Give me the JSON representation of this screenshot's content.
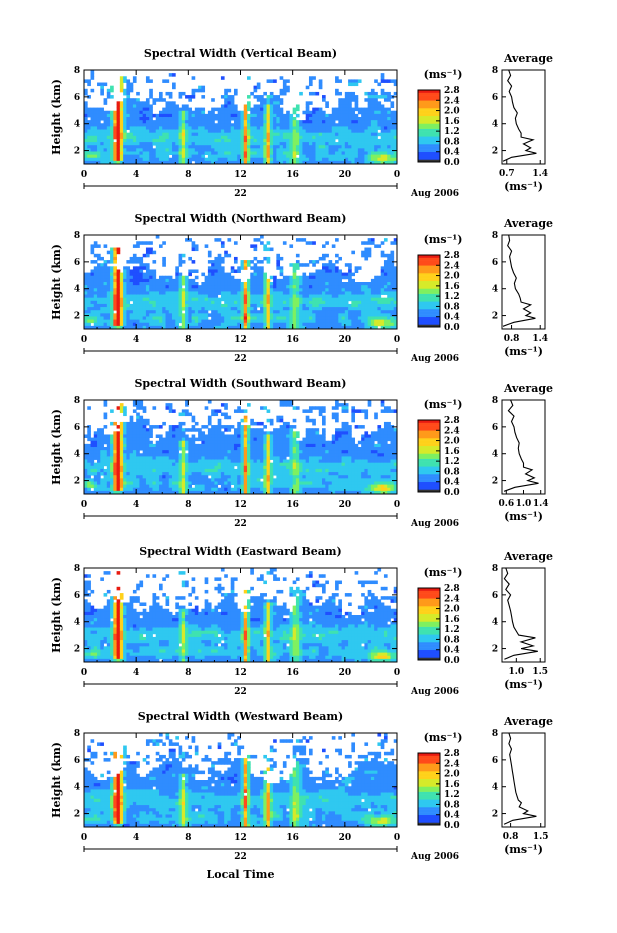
{
  "colors": {
    "colormap": [
      "#2a2ab0",
      "#1f4fff",
      "#2f8cff",
      "#2fc8f0",
      "#3fe2b0",
      "#7ff060",
      "#d6ea2a",
      "#ffd11a",
      "#ff9a1a",
      "#ff4a1a",
      "#e81a10"
    ],
    "cb_bottom": "#333333",
    "white": "#ffffff"
  },
  "figure": {
    "xlabel": "Local Time",
    "xdate_label": "22",
    "month_label": "Aug 2006",
    "xticks": [
      "0",
      "4",
      "8",
      "12",
      "16",
      "20",
      "0"
    ],
    "yticks": [
      "2",
      "4",
      "6",
      "8"
    ],
    "ylabel": "Height (km)",
    "cb_label": "(ms⁻¹)",
    "cb_ticks": [
      "0.0",
      "0.4",
      "0.8",
      "1.2",
      "1.6",
      "2.0",
      "2.4",
      "2.8"
    ],
    "avg_title": "Average",
    "avg_xlabel": "(ms⁻¹)",
    "avg_yticks": [
      "2",
      "4",
      "6",
      "8"
    ]
  },
  "chart_data": [
    {
      "type": "heatmap",
      "title": "Spectral Width (Vertical Beam)",
      "xlabel": "",
      "ylabel": "Height (km)",
      "xlim": [
        0,
        24
      ],
      "ylim": [
        1,
        8
      ],
      "colorbar": {
        "label": "(ms⁻¹)",
        "range": [
          0,
          2.8
        ]
      },
      "average": {
        "title": "Average",
        "xticks": [
          "0.7",
          "1.4"
        ],
        "xlim": [
          0.6,
          1.5
        ],
        "height": [
          1.2,
          1.5,
          1.8,
          2.0,
          2.2,
          2.5,
          2.8,
          3.0,
          3.3,
          3.6,
          4.0,
          4.4,
          4.8,
          5.2,
          5.6,
          6.0,
          6.4,
          6.8,
          7.2,
          7.6,
          8.0
        ],
        "value": [
          0.62,
          0.8,
          1.32,
          1.1,
          1.2,
          1.05,
          1.25,
          1.0,
          1.0,
          0.95,
          0.9,
          0.88,
          0.92,
          0.85,
          0.82,
          0.8,
          0.75,
          0.8,
          0.72,
          0.78,
          0.74
        ]
      }
    },
    {
      "type": "heatmap",
      "title": "Spectral Width (Northward Beam)",
      "xlabel": "",
      "ylabel": "Height (km)",
      "xlim": [
        0,
        24
      ],
      "ylim": [
        1,
        8
      ],
      "colorbar": {
        "label": "(ms⁻¹)",
        "range": [
          0,
          2.8
        ]
      },
      "average": {
        "title": "Average",
        "xticks": [
          "0.8",
          "1.4"
        ],
        "xlim": [
          0.6,
          1.5
        ],
        "height": [
          1.2,
          1.5,
          1.8,
          2.0,
          2.2,
          2.5,
          2.8,
          3.0,
          3.3,
          3.6,
          4.0,
          4.4,
          4.8,
          5.2,
          5.6,
          6.0,
          6.4,
          6.8,
          7.2,
          7.6,
          8.0
        ],
        "value": [
          0.62,
          0.85,
          1.3,
          1.1,
          1.2,
          1.05,
          1.2,
          1.0,
          0.98,
          0.95,
          0.88,
          0.86,
          0.9,
          0.84,
          0.8,
          0.78,
          0.76,
          0.8,
          0.72,
          0.76,
          0.74
        ]
      }
    },
    {
      "type": "heatmap",
      "title": "Spectral Width (Southward Beam)",
      "xlabel": "",
      "ylabel": "Height (km)",
      "xlim": [
        0,
        24
      ],
      "ylim": [
        1,
        8
      ],
      "colorbar": {
        "label": "(ms⁻¹)",
        "range": [
          0,
          2.8
        ]
      },
      "average": {
        "title": "Average",
        "xticks": [
          "0.6",
          "1.0",
          "1.4"
        ],
        "xlim": [
          0.5,
          1.5
        ],
        "height": [
          1.2,
          1.5,
          1.8,
          2.0,
          2.2,
          2.5,
          2.8,
          3.0,
          3.3,
          3.6,
          4.0,
          4.4,
          4.8,
          5.2,
          5.6,
          6.0,
          6.4,
          6.8,
          7.2,
          7.6,
          8.0
        ],
        "value": [
          0.55,
          0.8,
          1.35,
          1.1,
          1.25,
          1.05,
          1.2,
          1.0,
          1.0,
          0.95,
          0.9,
          0.88,
          0.9,
          0.84,
          0.8,
          0.78,
          0.72,
          0.78,
          0.65,
          0.75,
          0.7
        ]
      }
    },
    {
      "type": "heatmap",
      "title": "Spectral Width (Eastward Beam)",
      "xlabel": "",
      "ylabel": "Height (km)",
      "xlim": [
        0,
        24
      ],
      "ylim": [
        1,
        8
      ],
      "colorbar": {
        "label": "(ms⁻¹)",
        "range": [
          0,
          2.8
        ]
      },
      "average": {
        "title": "Average",
        "xticks": [
          "1.0",
          "1.5"
        ],
        "xlim": [
          0.7,
          1.6
        ],
        "height": [
          1.2,
          1.5,
          1.8,
          2.0,
          2.2,
          2.5,
          2.8,
          3.0,
          3.3,
          3.6,
          4.0,
          4.4,
          4.8,
          5.2,
          5.6,
          6.0,
          6.4,
          6.8,
          7.2,
          7.6,
          8.0
        ],
        "value": [
          0.75,
          0.95,
          1.45,
          1.1,
          1.35,
          1.1,
          1.4,
          1.05,
          1.0,
          0.95,
          0.92,
          0.9,
          0.88,
          0.85,
          0.82,
          0.88,
          0.78,
          0.85,
          0.75,
          0.82,
          0.78
        ]
      }
    },
    {
      "type": "heatmap",
      "title": "Spectral Width (Westward Beam)",
      "xlabel": "Local Time",
      "ylabel": "Height (km)",
      "xlim": [
        0,
        24
      ],
      "ylim": [
        1,
        8
      ],
      "colorbar": {
        "label": "(ms⁻¹)",
        "range": [
          0,
          2.8
        ]
      },
      "average": {
        "title": "Average",
        "xticks": [
          "0.8",
          "1.5"
        ],
        "xlim": [
          0.6,
          1.6
        ],
        "height": [
          1.2,
          1.5,
          1.8,
          2.0,
          2.2,
          2.5,
          2.8,
          3.0,
          3.3,
          3.6,
          4.0,
          4.4,
          4.8,
          5.2,
          5.6,
          6.0,
          6.4,
          6.8,
          7.2,
          7.6,
          8.0
        ],
        "value": [
          0.65,
          0.85,
          1.4,
          1.1,
          1.2,
          1.0,
          1.05,
          0.98,
          0.95,
          0.92,
          0.9,
          0.88,
          0.86,
          0.84,
          0.82,
          0.8,
          0.78,
          0.82,
          0.76,
          0.8,
          0.76
        ]
      }
    }
  ]
}
